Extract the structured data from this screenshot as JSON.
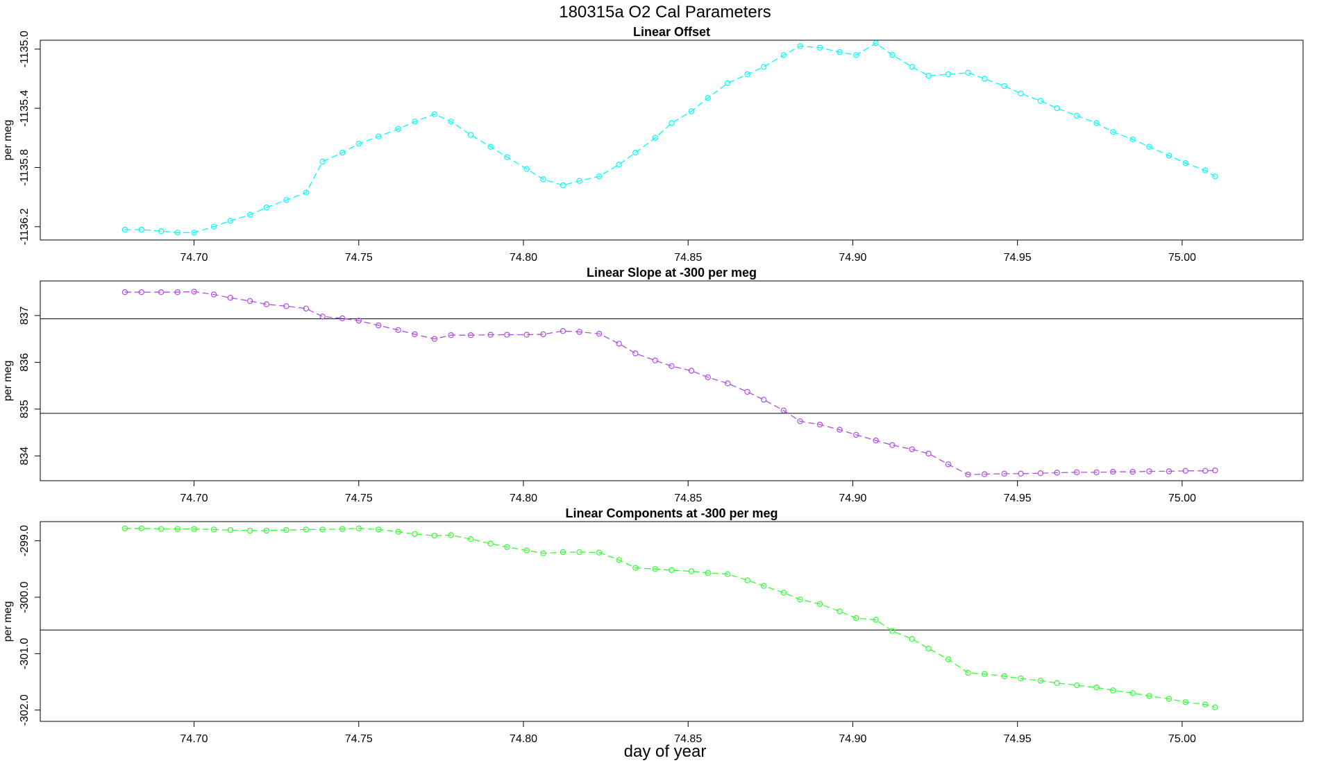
{
  "figure": {
    "title": "180315a   O2 Cal Parameters",
    "xlabel": "day of year"
  },
  "chart_data": [
    {
      "type": "line",
      "title": "Linear Offset",
      "ylabel": "per meg",
      "color": "#00ffff",
      "xlim": [
        74.6533,
        75.0367
      ],
      "ylim": [
        -1136.29,
        -1134.94
      ],
      "xticks": [
        "74.70",
        "74.75",
        "74.80",
        "74.85",
        "74.90",
        "74.95",
        "75.00"
      ],
      "yticks": [
        "-1136.2",
        "-1135.8",
        "-1135.4",
        "-1135.0"
      ],
      "hlines": [],
      "x": [
        74.679,
        74.684,
        74.69,
        74.695,
        74.7,
        74.706,
        74.711,
        74.717,
        74.722,
        74.728,
        74.734,
        74.739,
        74.745,
        74.75,
        74.756,
        74.762,
        74.767,
        74.773,
        74.778,
        74.784,
        74.79,
        74.795,
        74.801,
        74.806,
        74.812,
        74.817,
        74.823,
        74.829,
        74.834,
        74.84,
        74.845,
        74.851,
        74.856,
        74.862,
        74.868,
        74.873,
        74.879,
        74.884,
        74.89,
        74.896,
        74.901,
        74.907,
        74.912,
        74.918,
        74.923,
        74.929,
        74.935,
        74.94,
        74.946,
        74.951,
        74.957,
        74.962,
        74.968,
        74.974,
        74.979,
        74.985,
        74.99,
        74.996,
        75.001,
        75.007,
        75.01
      ],
      "y": [
        -1136.22,
        -1136.22,
        -1136.23,
        -1136.24,
        -1136.24,
        -1136.2,
        -1136.16,
        -1136.12,
        -1136.07,
        -1136.02,
        -1135.97,
        -1135.76,
        -1135.7,
        -1135.64,
        -1135.59,
        -1135.54,
        -1135.49,
        -1135.44,
        -1135.49,
        -1135.58,
        -1135.66,
        -1135.73,
        -1135.81,
        -1135.88,
        -1135.92,
        -1135.89,
        -1135.86,
        -1135.78,
        -1135.7,
        -1135.6,
        -1135.5,
        -1135.42,
        -1135.33,
        -1135.23,
        -1135.17,
        -1135.12,
        -1135.04,
        -1134.98,
        -1134.99,
        -1135.02,
        -1135.04,
        -1134.96,
        -1135.04,
        -1135.12,
        -1135.18,
        -1135.17,
        -1135.16,
        -1135.2,
        -1135.25,
        -1135.3,
        -1135.35,
        -1135.4,
        -1135.45,
        -1135.5,
        -1135.56,
        -1135.61,
        -1135.66,
        -1135.72,
        -1135.77,
        -1135.82,
        -1135.86
      ]
    },
    {
      "type": "line",
      "title": "Linear Slope at -300 per meg",
      "ylabel": "per meg",
      "color": "#b14ce6",
      "xlim": [
        74.6533,
        75.0367
      ],
      "ylim": [
        833.47,
        837.74
      ],
      "xticks": [
        "74.70",
        "74.75",
        "74.80",
        "74.85",
        "74.90",
        "74.95",
        "75.00"
      ],
      "yticks": [
        "834",
        "835",
        "836",
        "837"
      ],
      "hlines": [
        834.91,
        836.93
      ],
      "x": [
        74.679,
        74.684,
        74.69,
        74.695,
        74.7,
        74.706,
        74.711,
        74.717,
        74.722,
        74.728,
        74.734,
        74.739,
        74.745,
        74.75,
        74.756,
        74.762,
        74.767,
        74.773,
        74.778,
        74.784,
        74.79,
        74.795,
        74.801,
        74.806,
        74.812,
        74.817,
        74.823,
        74.829,
        74.834,
        74.84,
        74.845,
        74.851,
        74.856,
        74.862,
        74.868,
        74.873,
        74.879,
        74.884,
        74.89,
        74.896,
        74.901,
        74.907,
        74.912,
        74.918,
        74.923,
        74.929,
        74.935,
        74.94,
        74.946,
        74.951,
        74.957,
        74.962,
        74.968,
        74.974,
        74.979,
        74.985,
        74.99,
        74.996,
        75.001,
        75.007,
        75.01
      ],
      "y": [
        837.5,
        837.5,
        837.5,
        837.5,
        837.51,
        837.45,
        837.38,
        837.31,
        837.24,
        837.2,
        837.15,
        836.98,
        836.94,
        836.89,
        836.79,
        836.69,
        836.6,
        836.5,
        836.58,
        836.58,
        836.59,
        836.59,
        836.59,
        836.6,
        836.67,
        836.65,
        836.61,
        836.4,
        836.19,
        836.04,
        835.92,
        835.82,
        835.68,
        835.55,
        835.37,
        835.2,
        834.97,
        834.74,
        834.67,
        834.56,
        834.45,
        834.33,
        834.23,
        834.14,
        834.05,
        833.82,
        833.6,
        833.61,
        833.62,
        833.62,
        833.63,
        833.64,
        833.65,
        833.65,
        833.66,
        833.66,
        833.67,
        833.67,
        833.68,
        833.68,
        833.69
      ]
    },
    {
      "type": "line",
      "title": "Linear Components at -300 per meg",
      "ylabel": "per meg",
      "color": "#33ff33",
      "xlim": [
        74.6533,
        75.0367
      ],
      "ylim": [
        -302.2,
        -298.66
      ],
      "xticks": [
        "74.70",
        "74.75",
        "74.80",
        "74.85",
        "74.90",
        "74.95",
        "75.00"
      ],
      "yticks": [
        "-302.0",
        "-301.0",
        "-300.0",
        "-299.0"
      ],
      "hlines": [
        -300.58
      ],
      "x": [
        74.679,
        74.684,
        74.69,
        74.695,
        74.7,
        74.706,
        74.711,
        74.717,
        74.722,
        74.728,
        74.734,
        74.739,
        74.745,
        74.75,
        74.756,
        74.762,
        74.767,
        74.773,
        74.778,
        74.784,
        74.79,
        74.795,
        74.801,
        74.806,
        74.812,
        74.817,
        74.823,
        74.829,
        74.834,
        74.84,
        74.845,
        74.851,
        74.856,
        74.862,
        74.868,
        74.873,
        74.879,
        74.884,
        74.89,
        74.896,
        74.901,
        74.907,
        74.912,
        74.918,
        74.923,
        74.929,
        74.935,
        74.94,
        74.946,
        74.951,
        74.957,
        74.962,
        74.968,
        74.974,
        74.979,
        74.985,
        74.99,
        74.996,
        75.001,
        75.007,
        75.01
      ],
      "y": [
        -298.78,
        -298.78,
        -298.79,
        -298.79,
        -298.79,
        -298.8,
        -298.81,
        -298.82,
        -298.82,
        -298.81,
        -298.8,
        -298.8,
        -298.79,
        -298.78,
        -298.8,
        -298.84,
        -298.88,
        -298.91,
        -298.9,
        -298.97,
        -299.05,
        -299.11,
        -299.17,
        -299.22,
        -299.2,
        -299.2,
        -299.21,
        -299.34,
        -299.48,
        -299.5,
        -299.52,
        -299.54,
        -299.57,
        -299.59,
        -299.7,
        -299.8,
        -299.92,
        -300.04,
        -300.12,
        -300.25,
        -300.37,
        -300.4,
        -300.6,
        -300.74,
        -300.91,
        -301.1,
        -301.34,
        -301.36,
        -301.4,
        -301.44,
        -301.48,
        -301.52,
        -301.56,
        -301.6,
        -301.65,
        -301.7,
        -301.75,
        -301.8,
        -301.86,
        -301.9,
        -301.95
      ]
    }
  ]
}
